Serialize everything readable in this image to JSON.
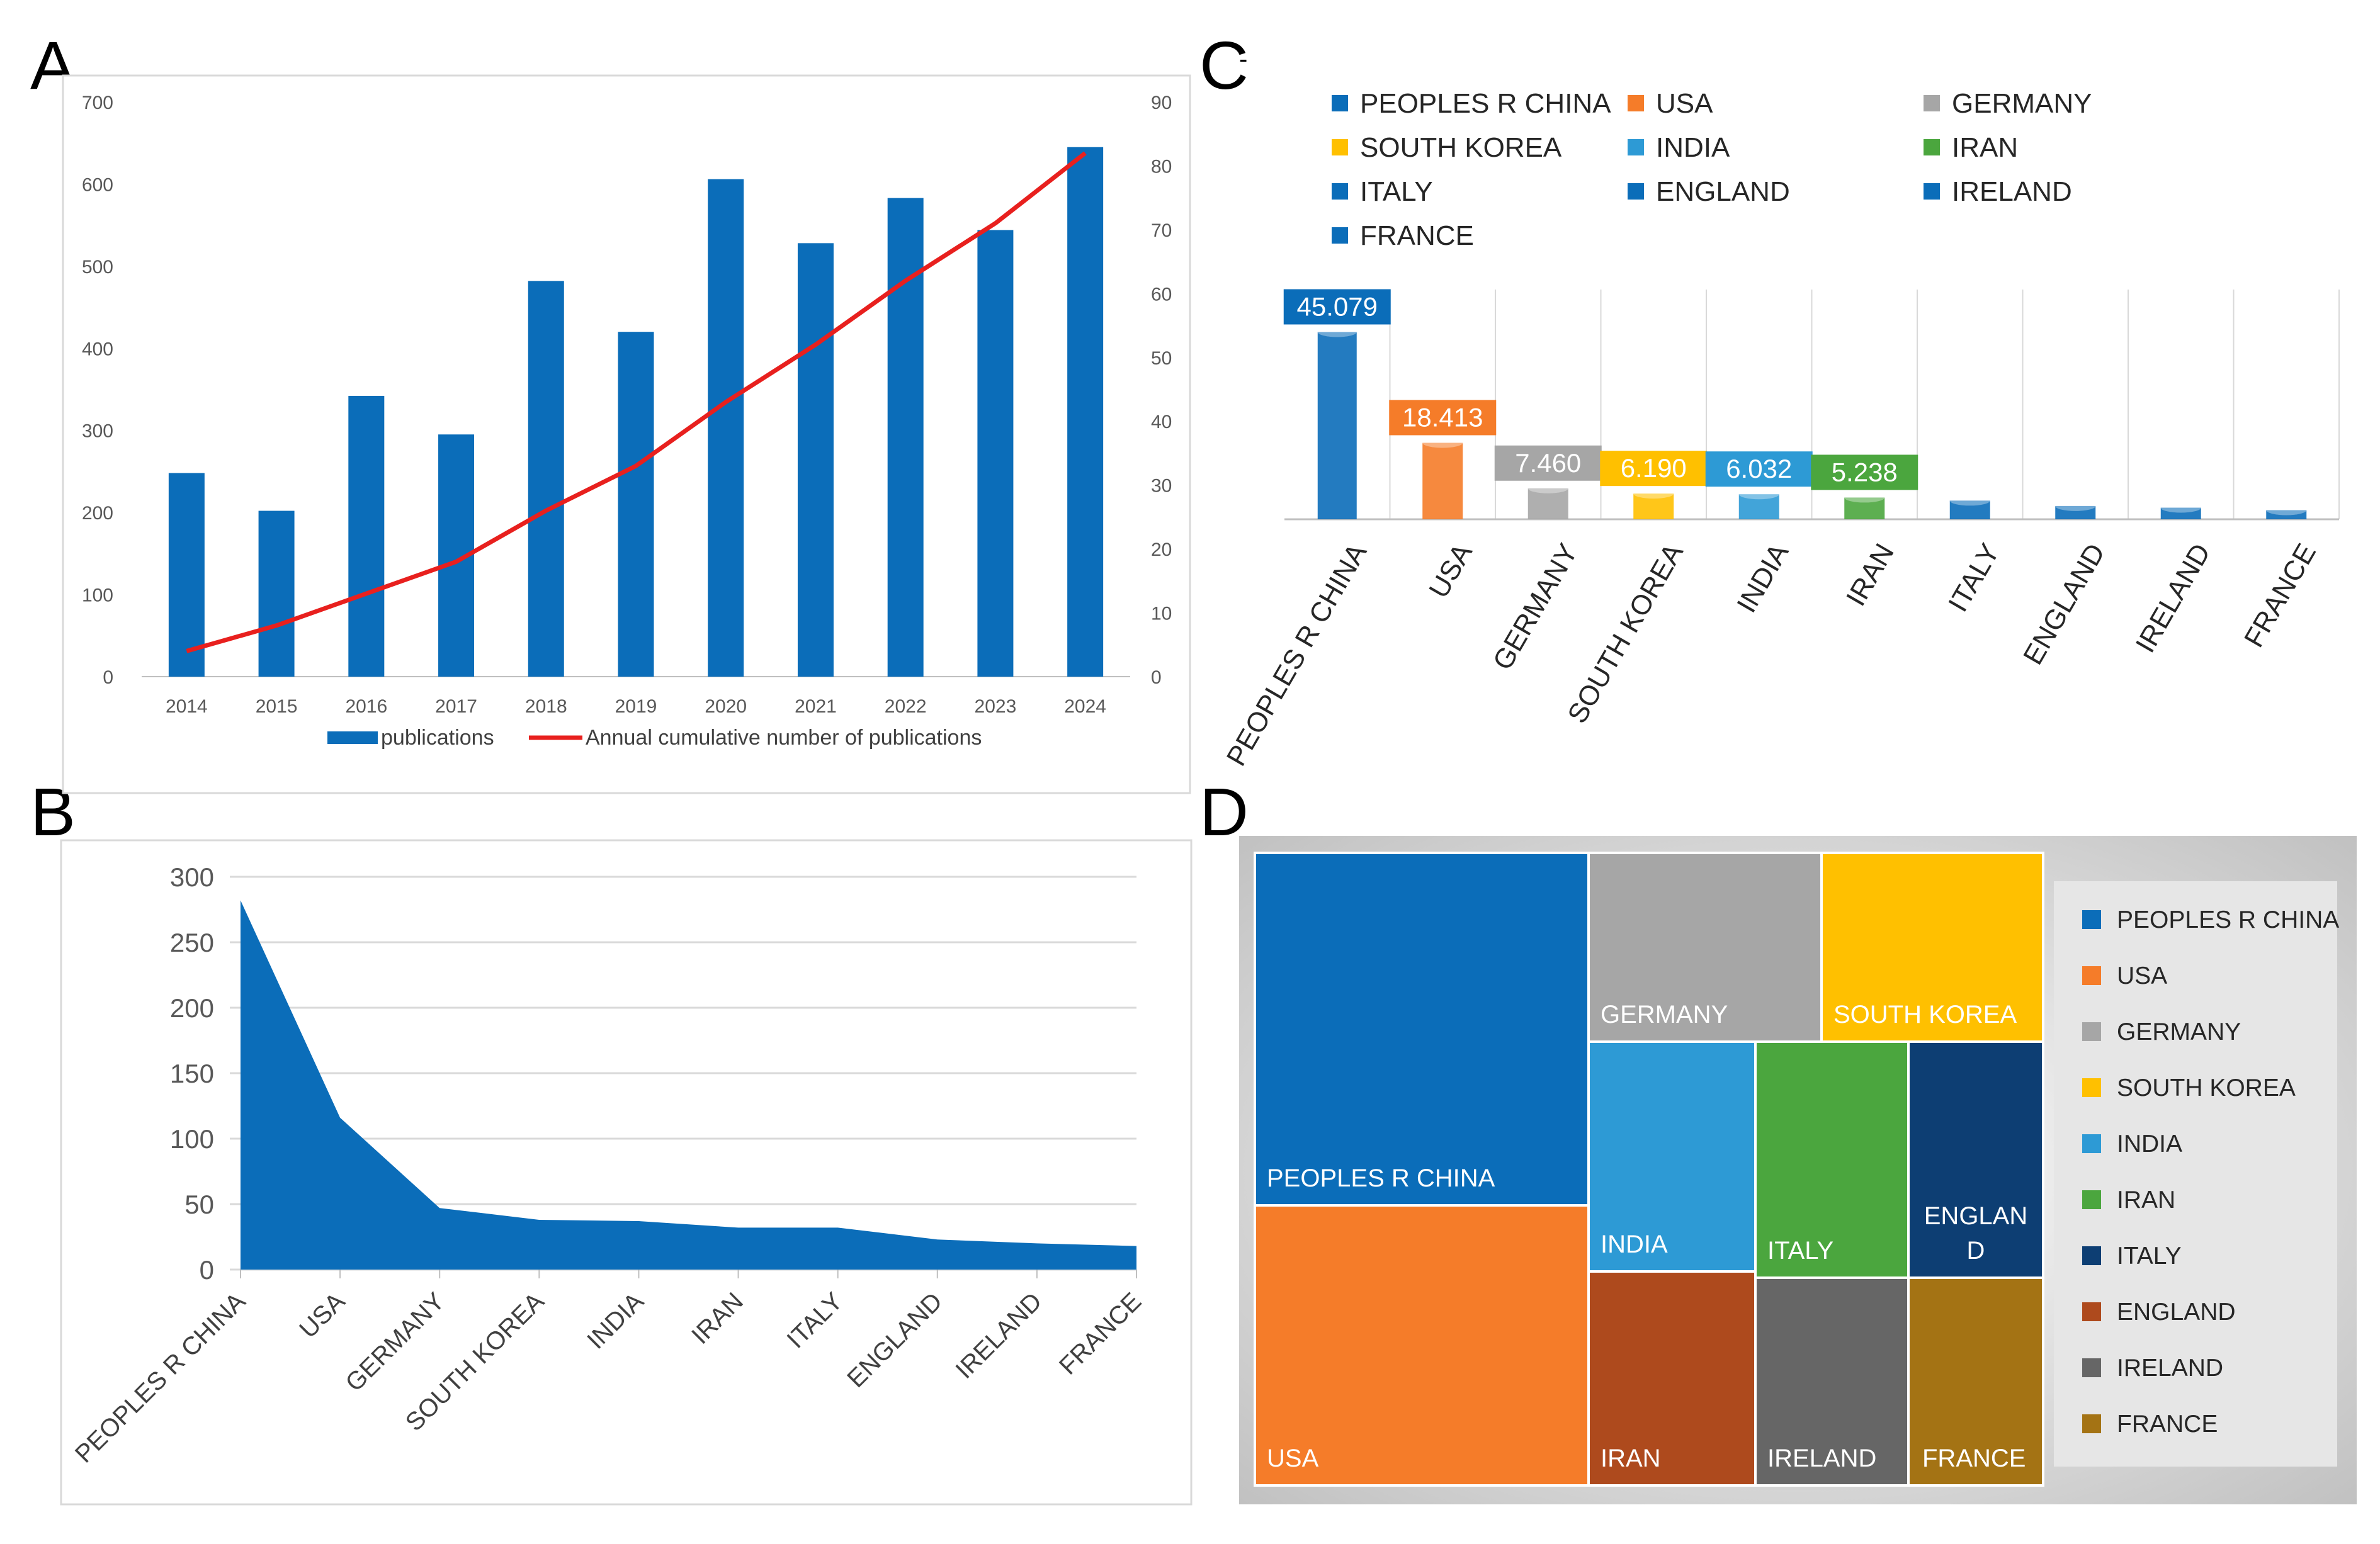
{
  "panels": {
    "a": "A",
    "b": "B",
    "c": "C",
    "d": "D",
    "c_mark": "-"
  },
  "colors": {
    "blue": "#0B6DB9",
    "red": "#E8201E",
    "orange": "#F57C29",
    "gray": "#A6A6A6",
    "gold": "#FFC000",
    "lightblue": "#2D9AD5",
    "green": "#4BA63E",
    "navy": "#0D3E73",
    "rust": "#AE4A1D",
    "darkgray": "#666666",
    "olive": "#A47314",
    "grid": "#D9D9D9"
  },
  "chart_data": [
    {
      "id": "A",
      "type": "bar",
      "categories": [
        "2014",
        "2015",
        "2016",
        "2017",
        "2018",
        "2019",
        "2020",
        "2021",
        "2022",
        "2023",
        "2024"
      ],
      "series": [
        {
          "name": "publications",
          "type": "bar",
          "axis": "left",
          "values": [
            248,
            202,
            342,
            295,
            482,
            420,
            606,
            528,
            583,
            544,
            645
          ]
        },
        {
          "name": "Annual cumulative number of publications",
          "type": "line",
          "axis": "right",
          "values": [
            4,
            8,
            13,
            18,
            26,
            33,
            43,
            52,
            62,
            71,
            82
          ]
        }
      ],
      "y_left": {
        "min": 0,
        "max": 700,
        "ticks": [
          "0",
          "100",
          "200",
          "300",
          "400",
          "500",
          "600",
          "700"
        ]
      },
      "y_right": {
        "min": 0,
        "max": 90,
        "ticks": [
          "0",
          "10",
          "20",
          "30",
          "40",
          "50",
          "60",
          "70",
          "80",
          "90"
        ]
      },
      "legend": [
        "publications",
        "Annual cumulative number of publications"
      ],
      "legend_position": "bottom"
    },
    {
      "id": "B",
      "type": "area",
      "categories": [
        "PEOPLES R CHINA",
        "USA",
        "GERMANY",
        "SOUTH KOREA",
        "INDIA",
        "IRAN",
        "ITALY",
        "ENGLAND",
        "IRELAND",
        "FRANCE"
      ],
      "values": [
        282,
        116,
        47,
        38,
        37,
        32,
        32,
        23,
        20,
        18
      ],
      "y": {
        "min": 0,
        "max": 300,
        "ticks": [
          "0",
          "50",
          "100",
          "150",
          "200",
          "250",
          "300"
        ]
      }
    },
    {
      "id": "C",
      "type": "bar",
      "categories": [
        "PEOPLES R CHINA",
        "USA",
        "GERMANY",
        "SOUTH KOREA",
        "INDIA",
        "IRAN",
        "ITALY",
        "ENGLAND",
        "IRELAND",
        "FRANCE"
      ],
      "values": [
        45.079,
        18.413,
        7.46,
        6.19,
        6.032,
        5.238,
        4.5,
        3.2,
        2.8,
        2.2
      ],
      "data_labels": [
        "45.079",
        "18.413",
        "7.460",
        "6.190",
        "6.032",
        "5.238",
        "",
        "",
        "",
        ""
      ],
      "legend": [
        "PEOPLES R CHINA",
        "USA",
        "GERMANY",
        "SOUTH KOREA",
        "INDIA",
        "IRAN",
        "ITALY",
        "ENGLAND",
        "IRELAND",
        "FRANCE"
      ],
      "legend_position": "top",
      "y": {
        "min": 0,
        "max": 50
      }
    },
    {
      "id": "D",
      "type": "treemap",
      "items": [
        {
          "label": "PEOPLES R CHINA",
          "lines": [
            "PEOPLES R CHINA"
          ]
        },
        {
          "label": "USA",
          "lines": [
            "USA"
          ]
        },
        {
          "label": "GERMANY",
          "lines": [
            "GERMANY"
          ]
        },
        {
          "label": "SOUTH KOREA",
          "lines": [
            "SOUTH KOREA"
          ]
        },
        {
          "label": "INDIA",
          "lines": [
            "INDIA"
          ]
        },
        {
          "label": "ITALY",
          "lines": [
            "ITALY"
          ]
        },
        {
          "label": "ENGLAND",
          "lines": [
            "ENGLAN",
            "D"
          ]
        },
        {
          "label": "IRAN",
          "lines": [
            "IRAN"
          ]
        },
        {
          "label": "IRELAND",
          "lines": [
            "IRELAND"
          ]
        },
        {
          "label": "FRANCE",
          "lines": [
            "FRANCE"
          ]
        }
      ],
      "legend": [
        "PEOPLES R CHINA",
        "USA",
        "GERMANY",
        "SOUTH KOREA",
        "INDIA",
        "IRAN",
        "ITALY",
        "ENGLAND",
        "IRELAND",
        "FRANCE"
      ],
      "legend_position": "right"
    }
  ]
}
